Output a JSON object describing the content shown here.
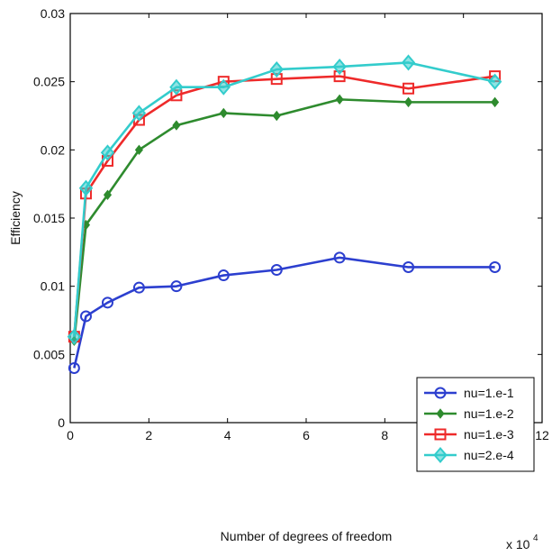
{
  "chart_data": {
    "type": "line",
    "title": "",
    "xlabel": "Number of degrees of freedom",
    "ylabel": "Efficiency",
    "x_multiplier_label": {
      "base": "x 10",
      "exp": "4"
    },
    "xlim": [
      0,
      12
    ],
    "ylim": [
      0,
      0.03
    ],
    "x_ticks": [
      0,
      2,
      4,
      6,
      8,
      10,
      12
    ],
    "x_tick_labels": [
      "0",
      "2",
      "4",
      "6",
      "8",
      "10",
      "12"
    ],
    "y_ticks": [
      0,
      0.005,
      0.01,
      0.015,
      0.02,
      0.025,
      0.03
    ],
    "y_tick_labels": [
      "0",
      "0.005",
      "0.01",
      "0.015",
      "0.02",
      "0.025",
      "0.03"
    ],
    "grid": false,
    "legend_position": "bottom-right",
    "series": [
      {
        "name": "nu=1.e-1",
        "color": "#2c3fcf",
        "marker": "circle",
        "x": [
          0.1,
          0.4,
          0.95,
          1.75,
          2.7,
          3.9,
          5.25,
          6.85,
          8.6,
          10.8
        ],
        "y": [
          0.004,
          0.0078,
          0.0088,
          0.0099,
          0.01,
          0.0108,
          0.0112,
          0.0121,
          0.0114,
          0.0114
        ]
      },
      {
        "name": "nu=1.e-2",
        "color": "#2e8b2e",
        "marker": "diamond-small",
        "x": [
          0.1,
          0.4,
          0.95,
          1.75,
          2.7,
          3.9,
          5.25,
          6.85,
          8.6,
          10.8
        ],
        "y": [
          0.006,
          0.0145,
          0.0167,
          0.02,
          0.0218,
          0.0227,
          0.0225,
          0.0237,
          0.0235,
          0.0235
        ]
      },
      {
        "name": "nu=1.e-3",
        "color": "#ee2a2a",
        "marker": "square",
        "x": [
          0.1,
          0.4,
          0.95,
          1.75,
          2.7,
          3.9,
          5.25,
          6.85,
          8.6,
          10.8
        ],
        "y": [
          0.0063,
          0.0168,
          0.0192,
          0.0222,
          0.024,
          0.025,
          0.0252,
          0.0254,
          0.0245,
          0.0254
        ]
      },
      {
        "name": "nu=2.e-4",
        "color": "#33cccc",
        "marker": "diamond",
        "x": [
          0.1,
          0.4,
          0.95,
          1.75,
          2.7,
          3.9,
          5.25,
          6.85,
          8.6,
          10.8
        ],
        "y": [
          0.0063,
          0.0172,
          0.0198,
          0.0227,
          0.0246,
          0.0246,
          0.0259,
          0.0261,
          0.0264,
          0.025
        ]
      }
    ]
  }
}
